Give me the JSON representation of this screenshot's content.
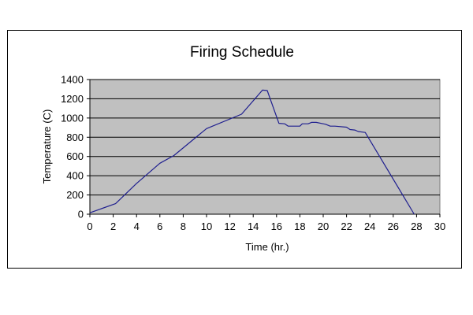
{
  "chart_data": {
    "type": "line",
    "title": "Firing Schedule",
    "xlabel": "Time (hr.)",
    "ylabel": "Temperature (C)",
    "xlim": [
      0,
      30
    ],
    "ylim": [
      0,
      1400
    ],
    "xticks": [
      "0",
      "2",
      "4",
      "6",
      "8",
      "10",
      "12",
      "14",
      "16",
      "18",
      "20",
      "22",
      "24",
      "26",
      "28",
      "30"
    ],
    "yticks": [
      "0",
      "200",
      "400",
      "600",
      "800",
      "1000",
      "1200",
      "1400"
    ],
    "grid": true,
    "legend": "none",
    "colors": {
      "plot_bg": "#c0c0c0",
      "line": "#1f1f8f",
      "grid": "#000000"
    },
    "series": [
      {
        "x": [
          0,
          2.2,
          4,
          6,
          7.2,
          10,
          13,
          14.8,
          15.2,
          16.2,
          16.7,
          17,
          18,
          18.2,
          18.7,
          19,
          19.4,
          20,
          20.2,
          20.6,
          21,
          22,
          22.3,
          22.7,
          23,
          23.6,
          27.8
        ],
        "y": [
          15,
          110,
          320,
          530,
          610,
          890,
          1040,
          1290,
          1285,
          945,
          940,
          915,
          915,
          940,
          940,
          955,
          955,
          940,
          935,
          915,
          915,
          905,
          880,
          875,
          860,
          850,
          0
        ]
      }
    ]
  }
}
